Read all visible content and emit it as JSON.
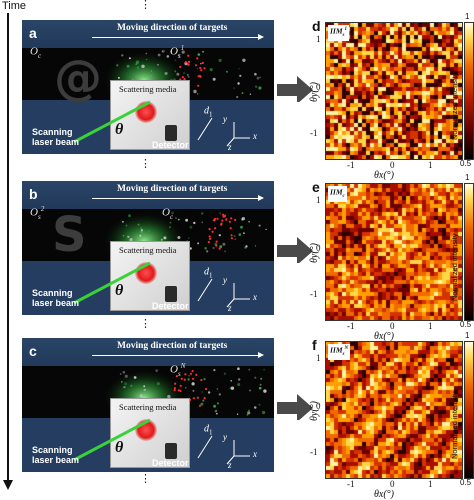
{
  "timeline": {
    "label": "Time",
    "dots": "⋮"
  },
  "panels": [
    {
      "letter": "a",
      "direction": "Moving direction of targets",
      "obj_left": {
        "base": "O",
        "sub": "c",
        "sup": ""
      },
      "obj_right": {
        "base": "O",
        "sub": "s",
        "sup": "1"
      },
      "glyph": "@",
      "media": "Scattering media",
      "theta": "θ",
      "laser": [
        "Scanning",
        "laser beam"
      ],
      "detector": "Detector",
      "d1": {
        "base": "d",
        "sub": "1"
      },
      "axes": [
        "y",
        "x",
        "z"
      ]
    },
    {
      "letter": "b",
      "direction": "Moving direction of targets",
      "obj_left": {
        "base": "O",
        "sub": "s",
        "sup": "2"
      },
      "obj_right": {
        "base": "O",
        "sub": "c",
        "sup": ""
      },
      "glyph": "S",
      "media": "Scattering media",
      "theta": "θ",
      "laser": [
        "Scanning",
        "laser beam"
      ],
      "detector": "Detector",
      "d1": {
        "base": "d",
        "sub": "1"
      },
      "axes": [
        "y",
        "x",
        "z"
      ]
    },
    {
      "letter": "c",
      "direction": "Moving direction of targets",
      "obj_left": {
        "base": "",
        "sub": "",
        "sup": ""
      },
      "obj_right": {
        "base": "O",
        "sub": "s",
        "sup": "N"
      },
      "glyph": "",
      "media": "Scattering media",
      "theta": "θ",
      "laser": [
        "Scanning",
        "laser beam"
      ],
      "detector": "Detector",
      "d1": {
        "base": "d",
        "sub": "1"
      },
      "axes": [
        "y",
        "x",
        "z"
      ]
    }
  ],
  "maps": [
    {
      "letter": "d",
      "label": {
        "base": "IIM",
        "sub": "s",
        "sup": "1"
      }
    },
    {
      "letter": "e",
      "label": {
        "base": "IIM",
        "sub": "c",
        "sup": ""
      }
    },
    {
      "letter": "f",
      "label": {
        "base": "IIM",
        "sub": "s",
        "sup": "N"
      }
    }
  ],
  "map_axes": {
    "x_ticks": [
      "-1",
      "0",
      "1"
    ],
    "y_ticks": [
      "1",
      "0",
      "-1"
    ],
    "x_title": "θx(°)",
    "y_title": "θy(°)"
  },
  "colorbar": {
    "title": "Normalized intensity",
    "max": "1",
    "min": "0.5"
  },
  "colors": {
    "panel_bg": "#1e3553",
    "band": "#060606",
    "laser": "#3ad13a",
    "target_red": "#ff2a2a",
    "speckle_green": "#39c24a",
    "arrow_gray": "#4a4a4a"
  }
}
